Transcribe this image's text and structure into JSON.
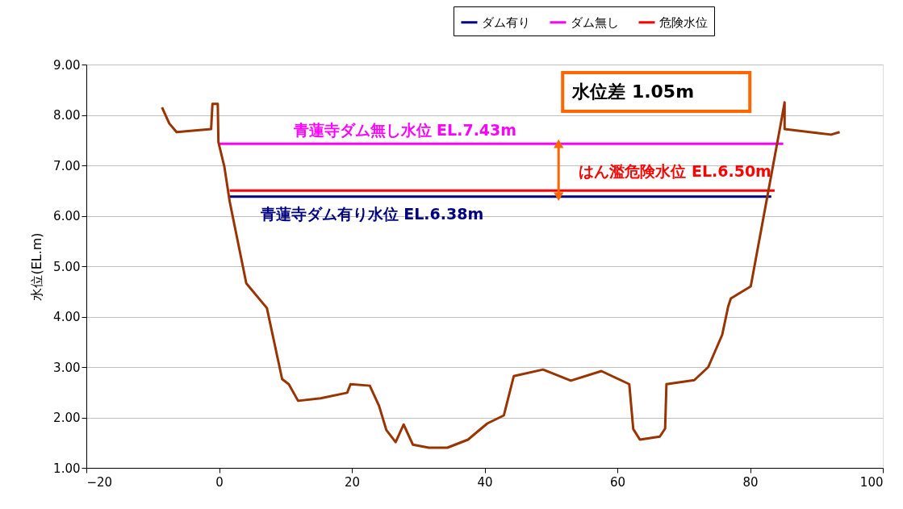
{
  "chart_data": {
    "type": "line",
    "ylabel": "水位(EL.m)",
    "legend": "top right",
    "xlim": [
      -20,
      100
    ],
    "xticks": [
      -20,
      0,
      20,
      40,
      60,
      80,
      100
    ],
    "ylim": [
      1,
      9
    ],
    "yticks": [
      {
        "value": 1,
        "label": "1.00"
      },
      {
        "value": 2,
        "label": "2.00"
      },
      {
        "value": 3,
        "label": "3.00"
      },
      {
        "value": 4,
        "label": "4.00"
      },
      {
        "value": 5,
        "label": "5.00"
      },
      {
        "value": 6,
        "label": "6.00"
      },
      {
        "value": 7,
        "label": "7.00"
      },
      {
        "value": 8,
        "label": "8.00"
      },
      {
        "value": 9,
        "label": "9.00"
      }
    ],
    "grid": "y",
    "line_style": "solid",
    "marker": "none",
    "series": [
      {
        "name": "ダム有り",
        "color": "#000080",
        "x": [
          1.6,
          83.2
        ],
        "values": [
          6.38,
          6.38
        ]
      },
      {
        "name": "ダム無し",
        "color": "#ff00ff",
        "x": [
          0,
          85
        ],
        "values": [
          7.43,
          7.43
        ]
      },
      {
        "name": "危険水位",
        "color": "#ff0000",
        "x": [
          1.6,
          83.7
        ],
        "values": [
          6.5,
          6.5
        ]
      },
      {
        "color": "#993300",
        "x": [
          -8.6,
          -7.5,
          -6.4,
          -1.2,
          -1.0,
          -0.2,
          -0.1,
          0.8,
          1.6,
          4.1,
          7.2,
          9.5,
          10.5,
          11.9,
          15.3,
          19.3,
          19.8,
          22.7,
          24.1,
          25.2,
          26.6,
          27.8,
          29.2,
          31.6,
          34.4,
          37.5,
          40.4,
          42.9,
          44.4,
          48.8,
          53.0,
          57.6,
          61.8,
          62.4,
          63.4,
          66.4,
          67.2,
          67.4,
          71.6,
          73.7,
          75.8,
          76.7,
          77.1,
          80.1,
          84.7,
          85.2,
          85.2,
          92.2,
          93.5
        ],
        "values": [
          8.15,
          7.83,
          7.66,
          7.72,
          8.22,
          8.22,
          7.46,
          6.97,
          6.28,
          4.66,
          4.17,
          2.76,
          2.66,
          2.33,
          2.38,
          2.49,
          2.66,
          2.63,
          2.23,
          1.75,
          1.51,
          1.86,
          1.46,
          1.4,
          1.4,
          1.56,
          1.88,
          2.04,
          2.82,
          2.95,
          2.73,
          2.92,
          2.66,
          1.77,
          1.56,
          1.62,
          1.78,
          2.66,
          2.74,
          3.0,
          3.64,
          4.2,
          4.36,
          4.6,
          7.88,
          8.25,
          7.72,
          7.61,
          7.66
        ]
      }
    ],
    "annotations": [
      "青蓮寺ダム有り水位  EL.6.38m",
      "青蓮寺ダム無し水位  EL.7.43m",
      "はん濫危険水位  EL.6.50m",
      "水位差  1.05m"
    ]
  }
}
